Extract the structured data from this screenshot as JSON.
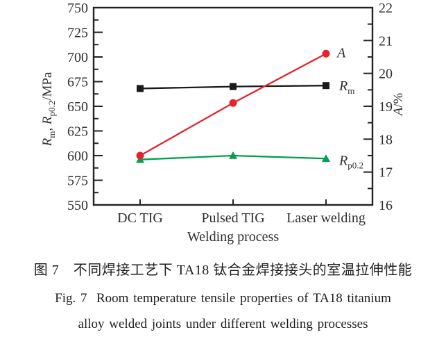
{
  "captions": {
    "chinese": "图 7　不同焊接工艺下 TA18 钛合金焊接接头的室温拉伸性能",
    "english_line1": "Fig. 7  Room temperature tensile properties of TA18 titanium",
    "english_line2": "alloy welded joints under different welding processes"
  },
  "chart_data": {
    "type": "line",
    "categories": [
      "DC TIG",
      "Pulsed TIG",
      "Laser welding"
    ],
    "xlabel": "Welding process",
    "grid": false,
    "legend_position": "labels-right-of-last-points",
    "y_left": {
      "label": "Rm, Rp0.2/MPa",
      "label_parts": [
        {
          "t": "R",
          "i": true,
          "sub": "m"
        },
        {
          "t": ", "
        },
        {
          "t": "R",
          "i": true,
          "sub": "p0.2"
        },
        {
          "t": "/MPa"
        }
      ],
      "lim": [
        550,
        750
      ],
      "major_step": 25,
      "minor_step": 12.5,
      "ticks": [
        550,
        575,
        600,
        625,
        650,
        675,
        700,
        725,
        750
      ]
    },
    "y_right": {
      "label": "A/%",
      "label_parts": [
        {
          "t": "A",
          "i": true
        },
        {
          "t": "/%"
        }
      ],
      "lim": [
        16,
        22
      ],
      "major_step": 1,
      "minor_step": 0.5,
      "ticks": [
        16,
        17,
        18,
        19,
        20,
        21,
        22
      ]
    },
    "series": [
      {
        "name": "Rm",
        "label_parts": [
          {
            "t": "R",
            "i": true,
            "sub": "m"
          }
        ],
        "axis": "left",
        "marker": "square",
        "color": "#1a1a1a",
        "values": [
          668,
          670,
          671
        ]
      },
      {
        "name": "Rp0.2",
        "label_parts": [
          {
            "t": "R",
            "i": true,
            "sub": "p0.2"
          }
        ],
        "axis": "left",
        "marker": "triangle",
        "color": "#00a14e",
        "values": [
          596,
          600,
          597
        ]
      },
      {
        "name": "A",
        "label_parts": [
          {
            "t": "A",
            "i": true
          }
        ],
        "axis": "right",
        "marker": "circle",
        "color": "#e8212b",
        "values": [
          17.5,
          19.1,
          20.6
        ]
      }
    ]
  },
  "colors": {
    "axis": "#222222",
    "text": "#2f2f2f"
  }
}
